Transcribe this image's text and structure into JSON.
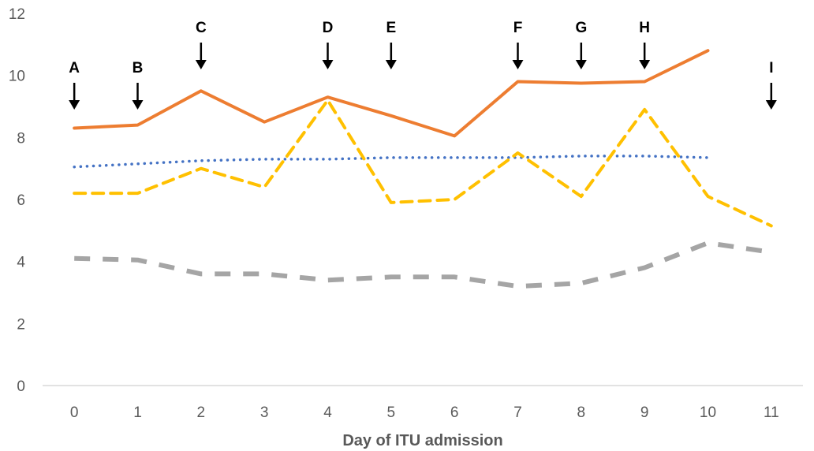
{
  "chart_data": {
    "type": "line",
    "xlabel": "Day of ITU admission",
    "ylabel": "",
    "x": [
      0,
      1,
      2,
      3,
      4,
      5,
      6,
      7,
      8,
      9,
      10,
      11
    ],
    "xlim": [
      -0.5,
      11.5
    ],
    "ylim": [
      0,
      12
    ],
    "y_ticks": [
      0,
      2,
      4,
      6,
      8,
      10,
      12
    ],
    "grid": false,
    "legend": "none",
    "series": [
      {
        "style": "solid",
        "color": "#ED7D31",
        "values": [
          8.3,
          8.4,
          9.5,
          8.5,
          9.3,
          8.7,
          8.05,
          9.8,
          9.75,
          9.8,
          10.8,
          null
        ]
      },
      {
        "style": "dashed",
        "color": "#FFC000",
        "values": [
          6.2,
          6.2,
          7.0,
          6.4,
          9.2,
          5.9,
          6.0,
          7.5,
          6.1,
          8.9,
          6.1,
          5.15
        ]
      },
      {
        "style": "dotted",
        "color": "#4472C4",
        "values": [
          7.05,
          7.15,
          7.25,
          7.3,
          7.3,
          7.35,
          7.35,
          7.35,
          7.4,
          7.4,
          7.35,
          null
        ]
      },
      {
        "style": "long-dashed",
        "color": "#A5A5A5",
        "values": [
          4.1,
          4.05,
          3.6,
          3.6,
          3.4,
          3.5,
          3.5,
          3.2,
          3.3,
          3.8,
          4.6,
          4.3
        ]
      }
    ],
    "annotations": [
      {
        "label": "A",
        "x": 0
      },
      {
        "label": "B",
        "x": 1
      },
      {
        "label": "C",
        "x": 2
      },
      {
        "label": "D",
        "x": 4
      },
      {
        "label": "E",
        "x": 5
      },
      {
        "label": "F",
        "x": 7
      },
      {
        "label": "G",
        "x": 8
      },
      {
        "label": "H",
        "x": 9
      },
      {
        "label": "I",
        "x": 11
      }
    ]
  }
}
